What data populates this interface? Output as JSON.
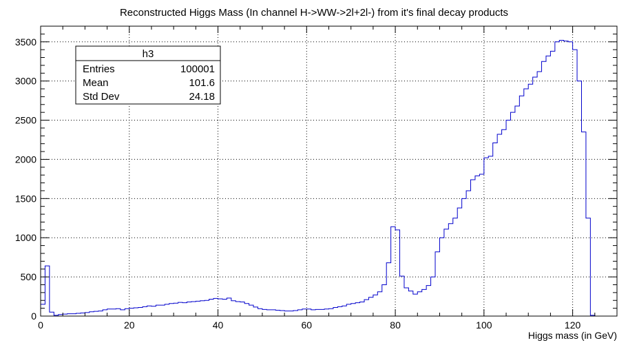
{
  "chart_data": {
    "type": "histogram",
    "title": "Reconstructed Higgs Mass (In channel H->WW->2l+2l-) from it's final decay products",
    "xlabel": "Higgs mass (in GeV)",
    "ylabel": "",
    "xlim": [
      0,
      130
    ],
    "ylim": [
      0,
      3700
    ],
    "grid": true,
    "bin_width": 1,
    "x_ticks": [
      0,
      20,
      40,
      60,
      80,
      100,
      120
    ],
    "y_ticks": [
      0,
      500,
      1000,
      1500,
      2000,
      2500,
      3000,
      3500
    ],
    "series": [
      {
        "line_color": "#0000cc",
        "bin_edges_start": 0,
        "values": [
          150,
          640,
          50,
          10,
          20,
          25,
          30,
          30,
          35,
          40,
          45,
          55,
          60,
          65,
          80,
          90,
          90,
          95,
          80,
          95,
          100,
          105,
          110,
          120,
          130,
          125,
          140,
          140,
          150,
          160,
          165,
          175,
          170,
          180,
          185,
          190,
          195,
          200,
          215,
          225,
          220,
          215,
          230,
          195,
          185,
          180,
          160,
          140,
          115,
          95,
          85,
          80,
          80,
          75,
          70,
          65,
          65,
          70,
          80,
          90,
          90,
          80,
          85,
          85,
          90,
          95,
          110,
          120,
          130,
          150,
          160,
          170,
          180,
          210,
          240,
          270,
          310,
          400,
          680,
          1140,
          1100,
          510,
          360,
          320,
          280,
          310,
          340,
          390,
          500,
          820,
          1000,
          1110,
          1180,
          1250,
          1380,
          1500,
          1600,
          1740,
          1790,
          1810,
          2020,
          2040,
          2210,
          2320,
          2380,
          2500,
          2600,
          2680,
          2810,
          2900,
          2960,
          3050,
          3120,
          3250,
          3320,
          3380,
          3500,
          3520,
          3510,
          3500,
          3400,
          3000,
          2350,
          1250,
          10,
          0,
          0,
          0,
          0,
          0
        ]
      }
    ],
    "stats_box": {
      "name": "h3",
      "rows": [
        {
          "label": "Entries",
          "value": "100001"
        },
        {
          "label": "Mean",
          "value": "101.6"
        },
        {
          "label": "Std Dev",
          "value": "24.18"
        }
      ]
    }
  },
  "colors": {
    "histogram": "#0000cc",
    "axis": "#000000",
    "grid": "#000000",
    "background": "#ffffff"
  }
}
